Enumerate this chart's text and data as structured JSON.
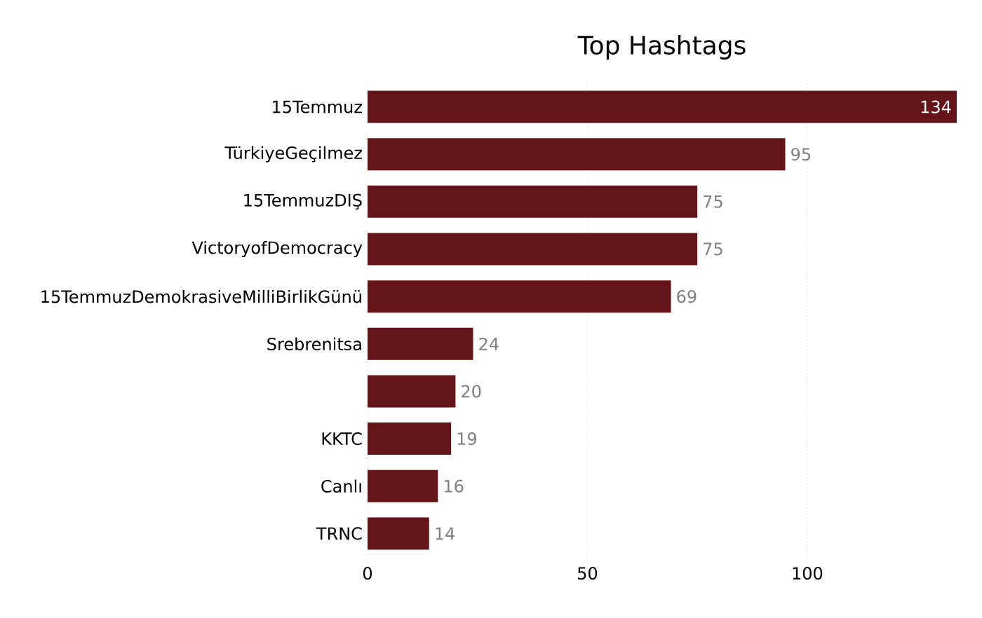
{
  "chart_data": {
    "type": "bar",
    "orientation": "horizontal",
    "title": "Top Hashtags",
    "categories": [
      "15Temmuz",
      "TürkiyeGeçilmez",
      "15TemmuzDIŞ",
      "VictoryofDemocracy",
      "15TemmuzDemokrasiveMilliBirlikGünü",
      "Srebrenitsa",
      null,
      "KKTC",
      "Canlı",
      "TRNC"
    ],
    "values": [
      134,
      95,
      75,
      75,
      69,
      24,
      20,
      19,
      16,
      14
    ],
    "color": "#651419",
    "xlim": [
      0,
      134
    ],
    "xticks": [
      0,
      50,
      100
    ],
    "grid": "x",
    "data_labels": true
  }
}
